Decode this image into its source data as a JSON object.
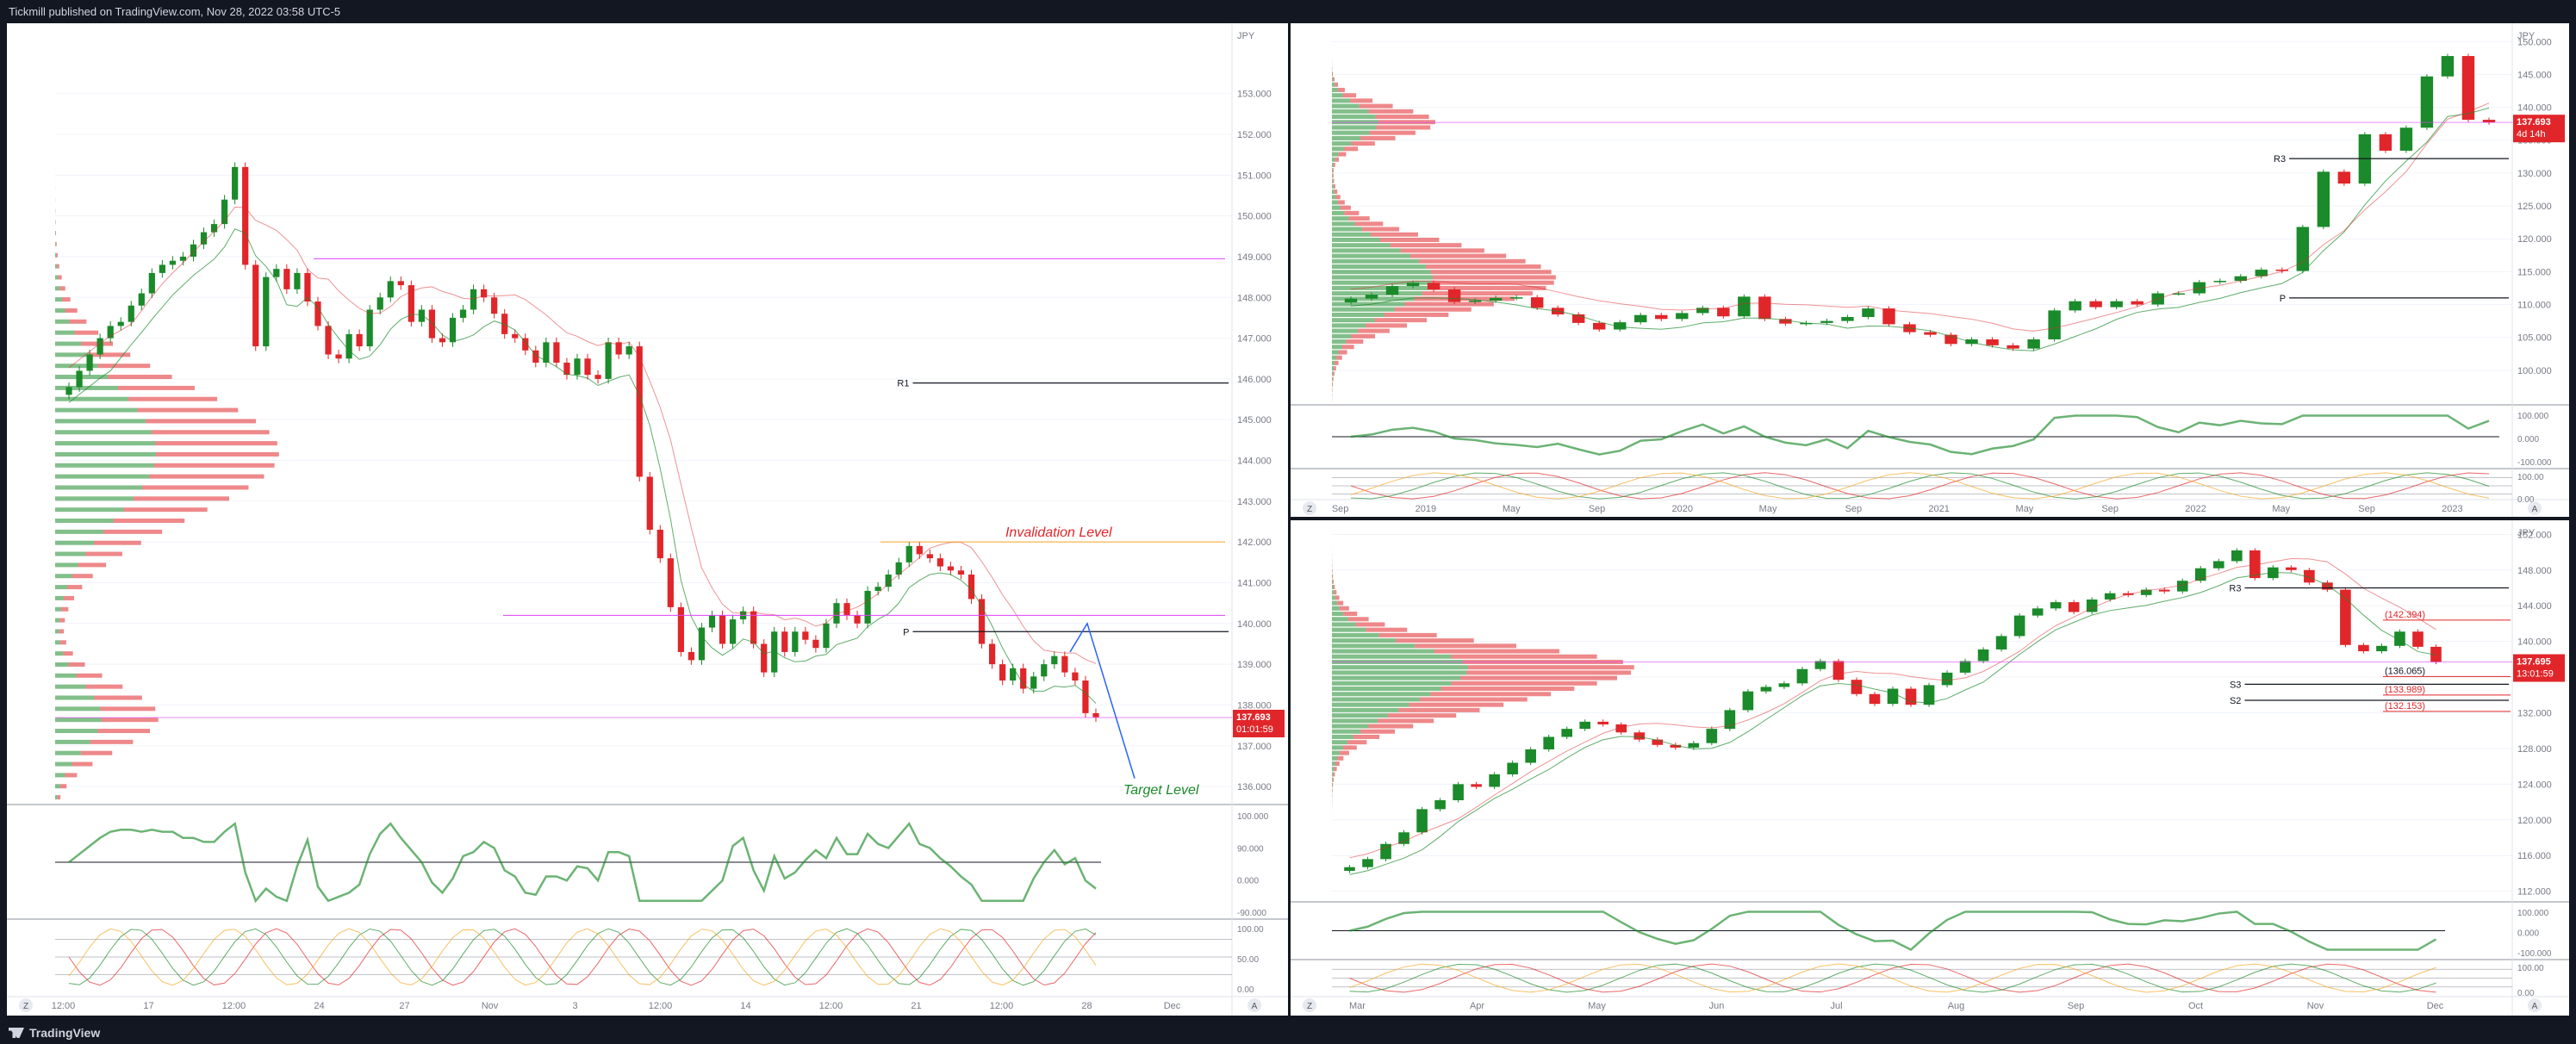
{
  "header": {
    "publisher_line": "Tickmill published on TradingView.com, Nov 28, 2022 03:58 UTC-5"
  },
  "footer": {
    "brand": "TradingView"
  },
  "colors": {
    "bull": "#1b8a2a",
    "bear": "#e0262a",
    "price_tag": "#e0262a",
    "grid": "#f0f3fa",
    "axis_text": "#787b86",
    "magenta_line": "#e040fb",
    "orange_line": "#f5a623",
    "projection": "#2962ff",
    "invalidation_text": "#e0262a",
    "target_text": "#1b8a2a"
  },
  "chart_data": [
    {
      "id": "left",
      "type": "candlestick",
      "title": "",
      "currency": "JPY",
      "ylim": [
        135.6,
        154.6
      ],
      "y_ticks": [
        "153.000",
        "152.000",
        "151.000",
        "150.000",
        "149.000",
        "148.000",
        "147.000",
        "146.000",
        "145.000",
        "144.000",
        "143.000",
        "142.000",
        "141.000",
        "140.000",
        "139.000",
        "138.000",
        "137.000",
        "136.000"
      ],
      "x_ticks": [
        "12:00",
        "17",
        "12:00",
        "24",
        "27",
        "Nov",
        "3",
        "12:00",
        "14",
        "12:00",
        "21",
        "12:00",
        "28",
        "Dec"
      ],
      "last_price": "137.693",
      "countdown": "01:01:59",
      "closes": [
        145.8,
        146.2,
        146.6,
        147.0,
        147.3,
        147.4,
        147.8,
        148.1,
        148.6,
        148.8,
        148.9,
        149.0,
        149.3,
        149.6,
        149.8,
        150.4,
        151.2,
        148.8,
        146.8,
        148.5,
        148.7,
        148.2,
        148.6,
        147.9,
        147.3,
        146.6,
        146.5,
        147.1,
        146.8,
        147.7,
        148.0,
        148.4,
        148.3,
        147.4,
        147.7,
        147.0,
        146.9,
        147.5,
        147.7,
        148.2,
        148.0,
        147.6,
        147.1,
        147.0,
        146.7,
        146.4,
        146.9,
        146.4,
        146.1,
        146.5,
        146.1,
        146.0,
        146.9,
        146.6,
        146.8,
        143.6,
        142.3,
        141.6,
        140.4,
        139.3,
        139.1,
        139.9,
        140.2,
        139.5,
        140.1,
        140.3,
        139.5,
        138.8,
        139.8,
        139.3,
        139.8,
        139.6,
        139.4,
        140.0,
        140.5,
        140.2,
        140.0,
        140.8,
        140.9,
        141.2,
        141.5,
        141.9,
        141.7,
        141.6,
        141.4,
        141.3,
        141.2,
        140.6,
        139.5,
        139.0,
        138.6,
        138.9,
        138.4,
        138.7,
        139.0,
        139.2,
        138.8,
        138.6,
        137.8,
        137.7
      ],
      "levels": [
        {
          "label": "R1",
          "value": 145.9
        },
        {
          "label": "P",
          "value": 139.8
        }
      ],
      "annotations": [
        "Invalidation Level",
        "Target Level"
      ],
      "osc1_ticks": [
        "100.000",
        "90.000",
        "0.000",
        "-90.000"
      ],
      "osc2_ticks": [
        "100.00",
        "50.00",
        "0.00"
      ]
    },
    {
      "id": "top-right",
      "type": "candlestick",
      "title": "",
      "currency": "JPY",
      "ylim": [
        95,
        152
      ],
      "y_ticks": [
        "150.000",
        "145.000",
        "140.000",
        "135.000",
        "130.000",
        "125.000",
        "120.000",
        "115.000",
        "110.000",
        "105.000",
        "100.000"
      ],
      "x_ticks": [
        "Sep",
        "2019",
        "May",
        "Sep",
        "2020",
        "May",
        "Sep",
        "2021",
        "May",
        "Sep",
        "2022",
        "May",
        "Sep",
        "2023"
      ],
      "last_price": "137.693",
      "countdown": "4d 14h",
      "closes": [
        110.9,
        111.5,
        112.8,
        113.3,
        112.3,
        110.4,
        110.6,
        111.0,
        111.1,
        109.5,
        108.5,
        107.2,
        106.2,
        107.3,
        108.4,
        107.8,
        108.7,
        109.5,
        108.2,
        111.2,
        107.8,
        107.1,
        107.2,
        107.5,
        108.1,
        109.4,
        107.0,
        105.8,
        105.4,
        104.0,
        104.7,
        103.8,
        103.3,
        104.7,
        109.1,
        110.5,
        109.6,
        110.5,
        110.0,
        111.7,
        111.7,
        113.4,
        113.6,
        114.3,
        115.3,
        115.1,
        121.8,
        130.2,
        128.4,
        135.9,
        133.4,
        136.9,
        144.7,
        147.8,
        138.1,
        137.7
      ],
      "levels": [
        {
          "label": "R3",
          "value": 132.2
        },
        {
          "label": "P",
          "value": 111.0
        }
      ],
      "osc1_ticks": [
        "100.000",
        "0.000",
        "-100.000"
      ],
      "osc2_ticks": [
        "100.00",
        "0.00"
      ]
    },
    {
      "id": "bottom-right",
      "type": "candlestick",
      "title": "",
      "currency": "JPY",
      "ylim": [
        111,
        153
      ],
      "y_ticks": [
        "152.000",
        "148.000",
        "144.000",
        "140.000",
        "136.000",
        "132.000",
        "128.000",
        "124.000",
        "120.000",
        "116.000",
        "112.000"
      ],
      "x_ticks": [
        "Mar",
        "Apr",
        "May",
        "Jun",
        "Jul",
        "Aug",
        "Sep",
        "Oct",
        "Nov",
        "Dec"
      ],
      "last_price": "137.695",
      "countdown": "13:01:59",
      "closes": [
        114.7,
        115.6,
        117.3,
        118.6,
        121.2,
        122.2,
        124.0,
        123.7,
        125.1,
        126.4,
        127.9,
        129.3,
        130.2,
        131.0,
        130.7,
        129.8,
        129.0,
        128.4,
        128.1,
        128.6,
        130.2,
        132.3,
        134.4,
        134.9,
        135.3,
        136.9,
        137.8,
        135.7,
        134.1,
        133.0,
        134.7,
        132.9,
        135.1,
        136.5,
        137.8,
        139.1,
        140.6,
        142.9,
        143.7,
        144.4,
        143.3,
        144.7,
        145.4,
        145.2,
        145.8,
        145.6,
        146.8,
        148.2,
        149.0,
        150.2,
        147.1,
        148.3,
        148.0,
        146.6,
        145.8,
        139.6,
        138.9,
        139.5,
        141.1,
        139.4,
        137.7
      ],
      "levels": [
        {
          "label": "R3",
          "value": 146.0
        },
        {
          "label": "S3",
          "value": 135.2
        },
        {
          "label": "S2",
          "value": 133.4
        }
      ],
      "price_labels": [
        "(142.394)",
        "(136.065)",
        "(133.989)",
        "(132.153)"
      ],
      "osc1_ticks": [
        "100.000",
        "0.000",
        "-100.000"
      ],
      "osc2_ticks": [
        "100.00",
        "0.00"
      ]
    }
  ]
}
